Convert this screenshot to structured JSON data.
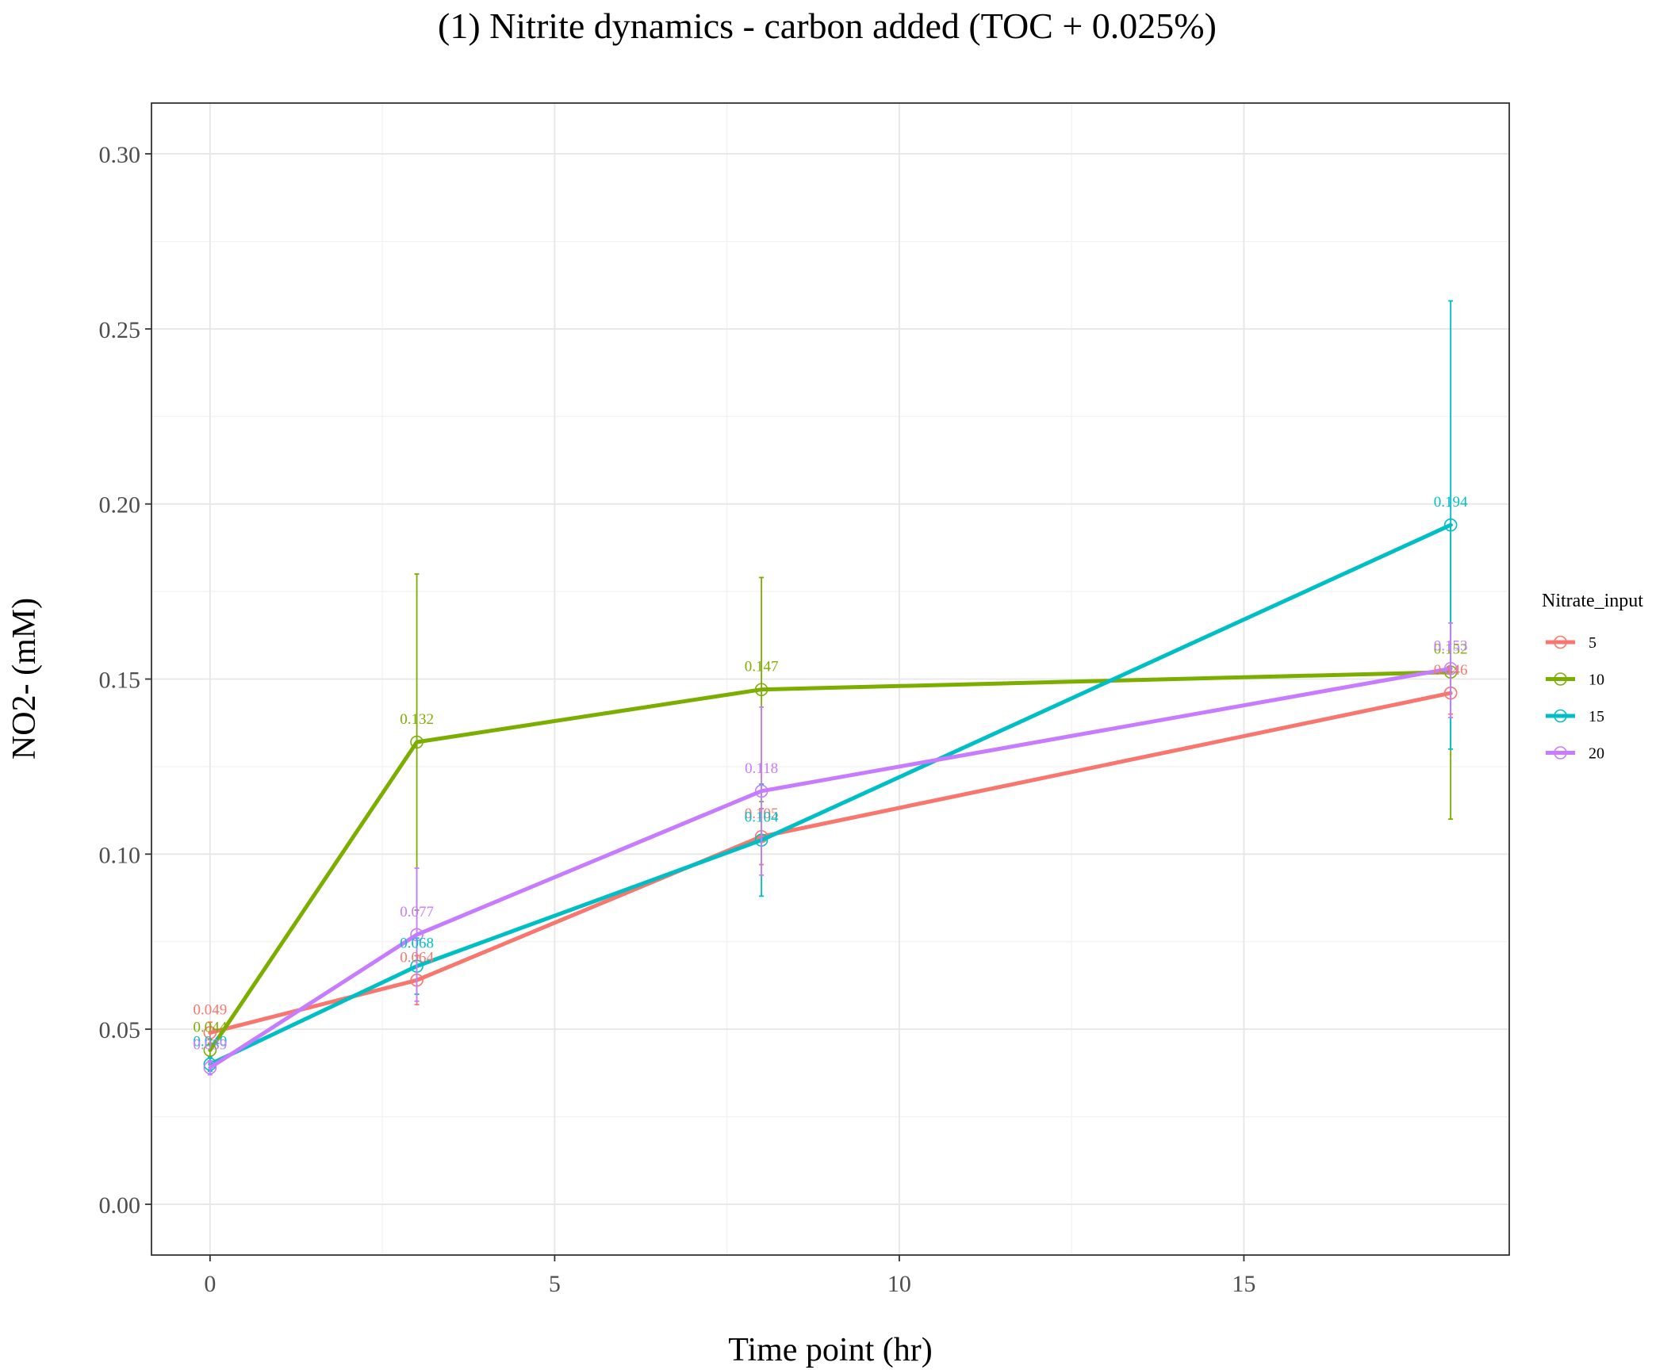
{
  "chart_data": {
    "type": "line",
    "title": "(1) Nitrite dynamics - carbon added (TOC + 0.025%)",
    "xlabel": "Time point (hr)",
    "ylabel": "NO2- (mM)",
    "xlim": [
      -0.85,
      18.85
    ],
    "ylim": [
      -0.0145,
      0.3145
    ],
    "x_ticks": [
      0,
      5,
      10,
      15
    ],
    "x_tick_labels": [
      "0",
      "5",
      "10",
      "15"
    ],
    "y_ticks": [
      0,
      0.05,
      0.1,
      0.15,
      0.2,
      0.25,
      0.3
    ],
    "y_tick_labels": [
      "0.00",
      "0.05",
      "0.10",
      "0.15",
      "0.20",
      "0.25",
      "0.30"
    ],
    "grid": true,
    "legend": {
      "title": "Nitrate_input",
      "position": "right"
    },
    "x": [
      0,
      3,
      8,
      18
    ],
    "series": [
      {
        "name": "5",
        "color": "#F8766D",
        "values": [
          0.049,
          0.064,
          0.105,
          0.146
        ],
        "error_low": [
          0.046,
          0.057,
          0.097,
          0.14
        ],
        "error_high": [
          0.052,
          0.071,
          0.113,
          0.152
        ],
        "labels": [
          "0.049",
          "0.064",
          "0.105",
          "0.146"
        ]
      },
      {
        "name": "10",
        "color": "#7CAE00",
        "values": [
          0.044,
          0.132,
          0.147,
          0.152
        ],
        "error_low": [
          0.041,
          0.084,
          0.115,
          0.11
        ],
        "error_high": [
          0.047,
          0.18,
          0.179,
          0.194
        ],
        "labels": [
          "0.044",
          "0.132",
          "0.147",
          "0.152"
        ]
      },
      {
        "name": "15",
        "color": "#00BFC4",
        "values": [
          0.04,
          0.068,
          0.104,
          0.194
        ],
        "error_low": [
          0.038,
          0.06,
          0.088,
          0.13
        ],
        "error_high": [
          0.042,
          0.076,
          0.12,
          0.258
        ],
        "labels": [
          "0.040",
          "0.068",
          "0.104",
          "0.194"
        ]
      },
      {
        "name": "20",
        "color": "#C77CFF",
        "values": [
          0.039,
          0.077,
          0.118,
          0.153
        ],
        "error_low": [
          0.037,
          0.058,
          0.094,
          0.139
        ],
        "error_high": [
          0.041,
          0.096,
          0.142,
          0.166
        ],
        "labels": [
          "0.039",
          "0.077",
          "0.118",
          "0.153"
        ]
      }
    ]
  }
}
